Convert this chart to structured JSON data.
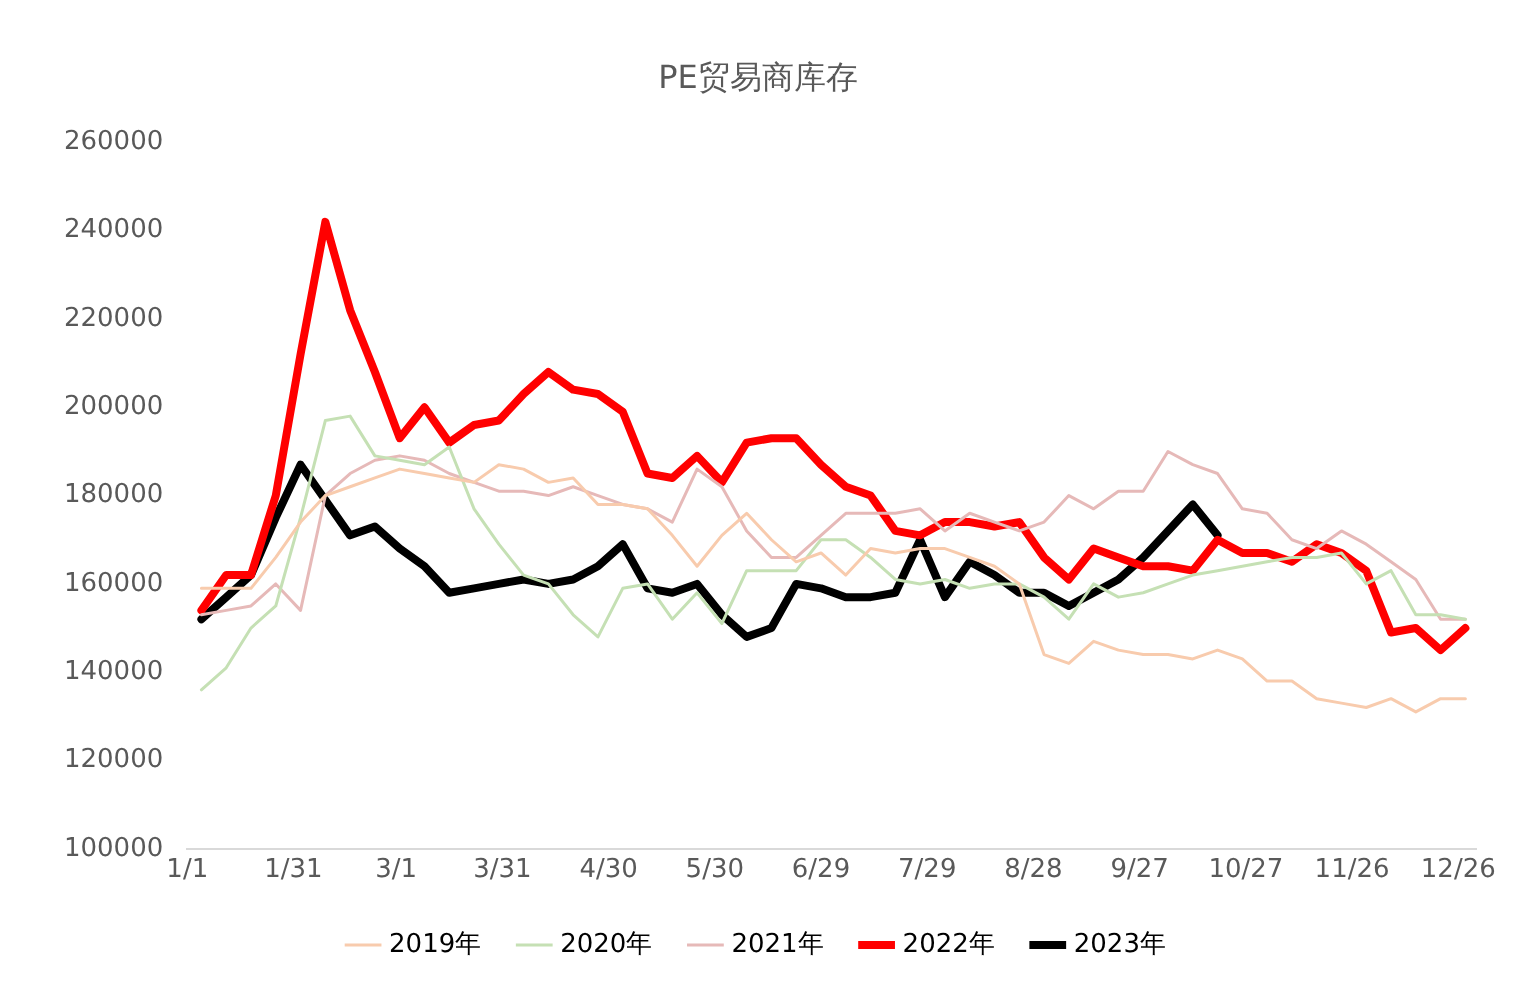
{
  "chart_data": {
    "type": "line",
    "title": "PE贸易商库存",
    "x": [
      "--01-05",
      "--01-12",
      "--01-19",
      "--01-26",
      "--02-02",
      "--02-09",
      "--02-16",
      "--02-23",
      "--03-02",
      "--03-09",
      "--03-16",
      "--03-23",
      "--03-30",
      "--04-06",
      "--04-13",
      "--04-20",
      "--04-27",
      "--05-04",
      "--05-11",
      "--05-18",
      "--05-25",
      "--06-01",
      "--06-08",
      "--06-15",
      "--06-22",
      "--06-29",
      "--07-06",
      "--07-13",
      "--07-20",
      "--07-27",
      "--08-03",
      "--08-10",
      "--08-17",
      "--08-24",
      "--08-31",
      "--09-07",
      "--09-14",
      "--09-21",
      "--09-28",
      "--10-05",
      "--10-12",
      "--10-19",
      "--10-26",
      "--11-02",
      "--11-09",
      "--11-16",
      "--11-23",
      "--11-30",
      "--12-07",
      "--12-14",
      "--12-21",
      "--12-28"
    ],
    "series": [
      {
        "name": "2019年",
        "color": "#f8cbad",
        "values": [
          159000,
          159000,
          159000,
          166000,
          174000,
          180000,
          182000,
          184000,
          186000,
          185000,
          184000,
          183000,
          187000,
          186000,
          183000,
          184000,
          178000,
          178000,
          177000,
          171000,
          164000,
          171000,
          176000,
          170000,
          165000,
          167000,
          162000,
          168000,
          167000,
          168000,
          168000,
          166000,
          164000,
          160000,
          144000,
          142000,
          147000,
          145000,
          144000,
          144000,
          143000,
          145000,
          143000,
          138000,
          138000,
          134000,
          133000,
          132000,
          134000,
          131000,
          134000,
          134000
        ]
      },
      {
        "name": "2020年",
        "color": "#c5e0b4",
        "values": [
          136000,
          141000,
          150000,
          155000,
          175000,
          197000,
          198000,
          189000,
          188000,
          187000,
          191000,
          177000,
          169000,
          162000,
          160000,
          153000,
          148000,
          159000,
          160000,
          152000,
          158000,
          151000,
          163000,
          163000,
          163000,
          170000,
          170000,
          166000,
          161000,
          160000,
          161000,
          159000,
          160000,
          160000,
          157000,
          152000,
          160000,
          157000,
          158000,
          160000,
          162000,
          163000,
          164000,
          165000,
          166000,
          166000,
          167000,
          160000,
          163000,
          153000,
          153000,
          152000
        ]
      },
      {
        "name": "2021年",
        "color": "#e6b9b8",
        "values": [
          153000,
          154000,
          155000,
          160000,
          154000,
          180000,
          185000,
          188000,
          189000,
          188000,
          185000,
          183000,
          181000,
          181000,
          180000,
          182000,
          180000,
          178000,
          177000,
          174000,
          186000,
          182000,
          172000,
          166000,
          166000,
          171000,
          176000,
          176000,
          176000,
          177000,
          172000,
          176000,
          174000,
          172000,
          174000,
          180000,
          177000,
          181000,
          181000,
          190000,
          187000,
          185000,
          177000,
          176000,
          170000,
          168000,
          172000,
          169000,
          165000,
          161000,
          152000,
          152000
        ]
      },
      {
        "name": "2022年",
        "color": "#ff0000",
        "values": [
          154000,
          162000,
          162000,
          180000,
          212000,
          242000,
          222000,
          208000,
          193000,
          200000,
          192000,
          196000,
          197000,
          203000,
          208000,
          204000,
          203000,
          199000,
          185000,
          184000,
          189000,
          183000,
          192000,
          193000,
          193000,
          187000,
          182000,
          180000,
          172000,
          171000,
          174000,
          174000,
          173000,
          174000,
          166000,
          161000,
          168000,
          166000,
          164000,
          164000,
          163000,
          170000,
          167000,
          167000,
          165000,
          169000,
          167000,
          163000,
          149000,
          150000,
          145000,
          150000
        ]
      },
      {
        "name": "2023年",
        "color": "#000000",
        "values": [
          152000,
          157000,
          162000,
          175000,
          187000,
          179000,
          171000,
          173000,
          168000,
          164000,
          158000,
          159000,
          160000,
          161000,
          160000,
          161000,
          164000,
          169000,
          159000,
          158000,
          160000,
          153000,
          148000,
          150000,
          160000,
          159000,
          157000,
          157000,
          158000,
          170000,
          157000,
          165000,
          162000,
          158000,
          158000,
          155000,
          158000,
          161000,
          166000,
          172000,
          178000,
          171000,
          null,
          null,
          null,
          null,
          null,
          null,
          null,
          null,
          null,
          null
        ]
      }
    ],
    "xlim": [
      "--01-01",
      "--12-31"
    ],
    "xticks": [
      {
        "value": "--01-01",
        "label": "1/1"
      },
      {
        "value": "--01-31",
        "label": "1/31"
      },
      {
        "value": "--03-01",
        "label": "3/1"
      },
      {
        "value": "--03-31",
        "label": "3/31"
      },
      {
        "value": "--04-30",
        "label": "4/30"
      },
      {
        "value": "--05-30",
        "label": "5/30"
      },
      {
        "value": "--06-29",
        "label": "6/29"
      },
      {
        "value": "--07-29",
        "label": "7/29"
      },
      {
        "value": "--08-28",
        "label": "8/28"
      },
      {
        "value": "--09-27",
        "label": "9/27"
      },
      {
        "value": "--10-27",
        "label": "10/27"
      },
      {
        "value": "--11-26",
        "label": "11/26"
      },
      {
        "value": "--12-26",
        "label": "12/26"
      }
    ],
    "ylim": [
      100000,
      260000
    ],
    "yticks": [
      100000,
      120000,
      140000,
      160000,
      180000,
      200000,
      220000,
      240000,
      260000
    ],
    "grid": false,
    "legend": "bottom",
    "marker": "none",
    "line_style": "solid"
  }
}
